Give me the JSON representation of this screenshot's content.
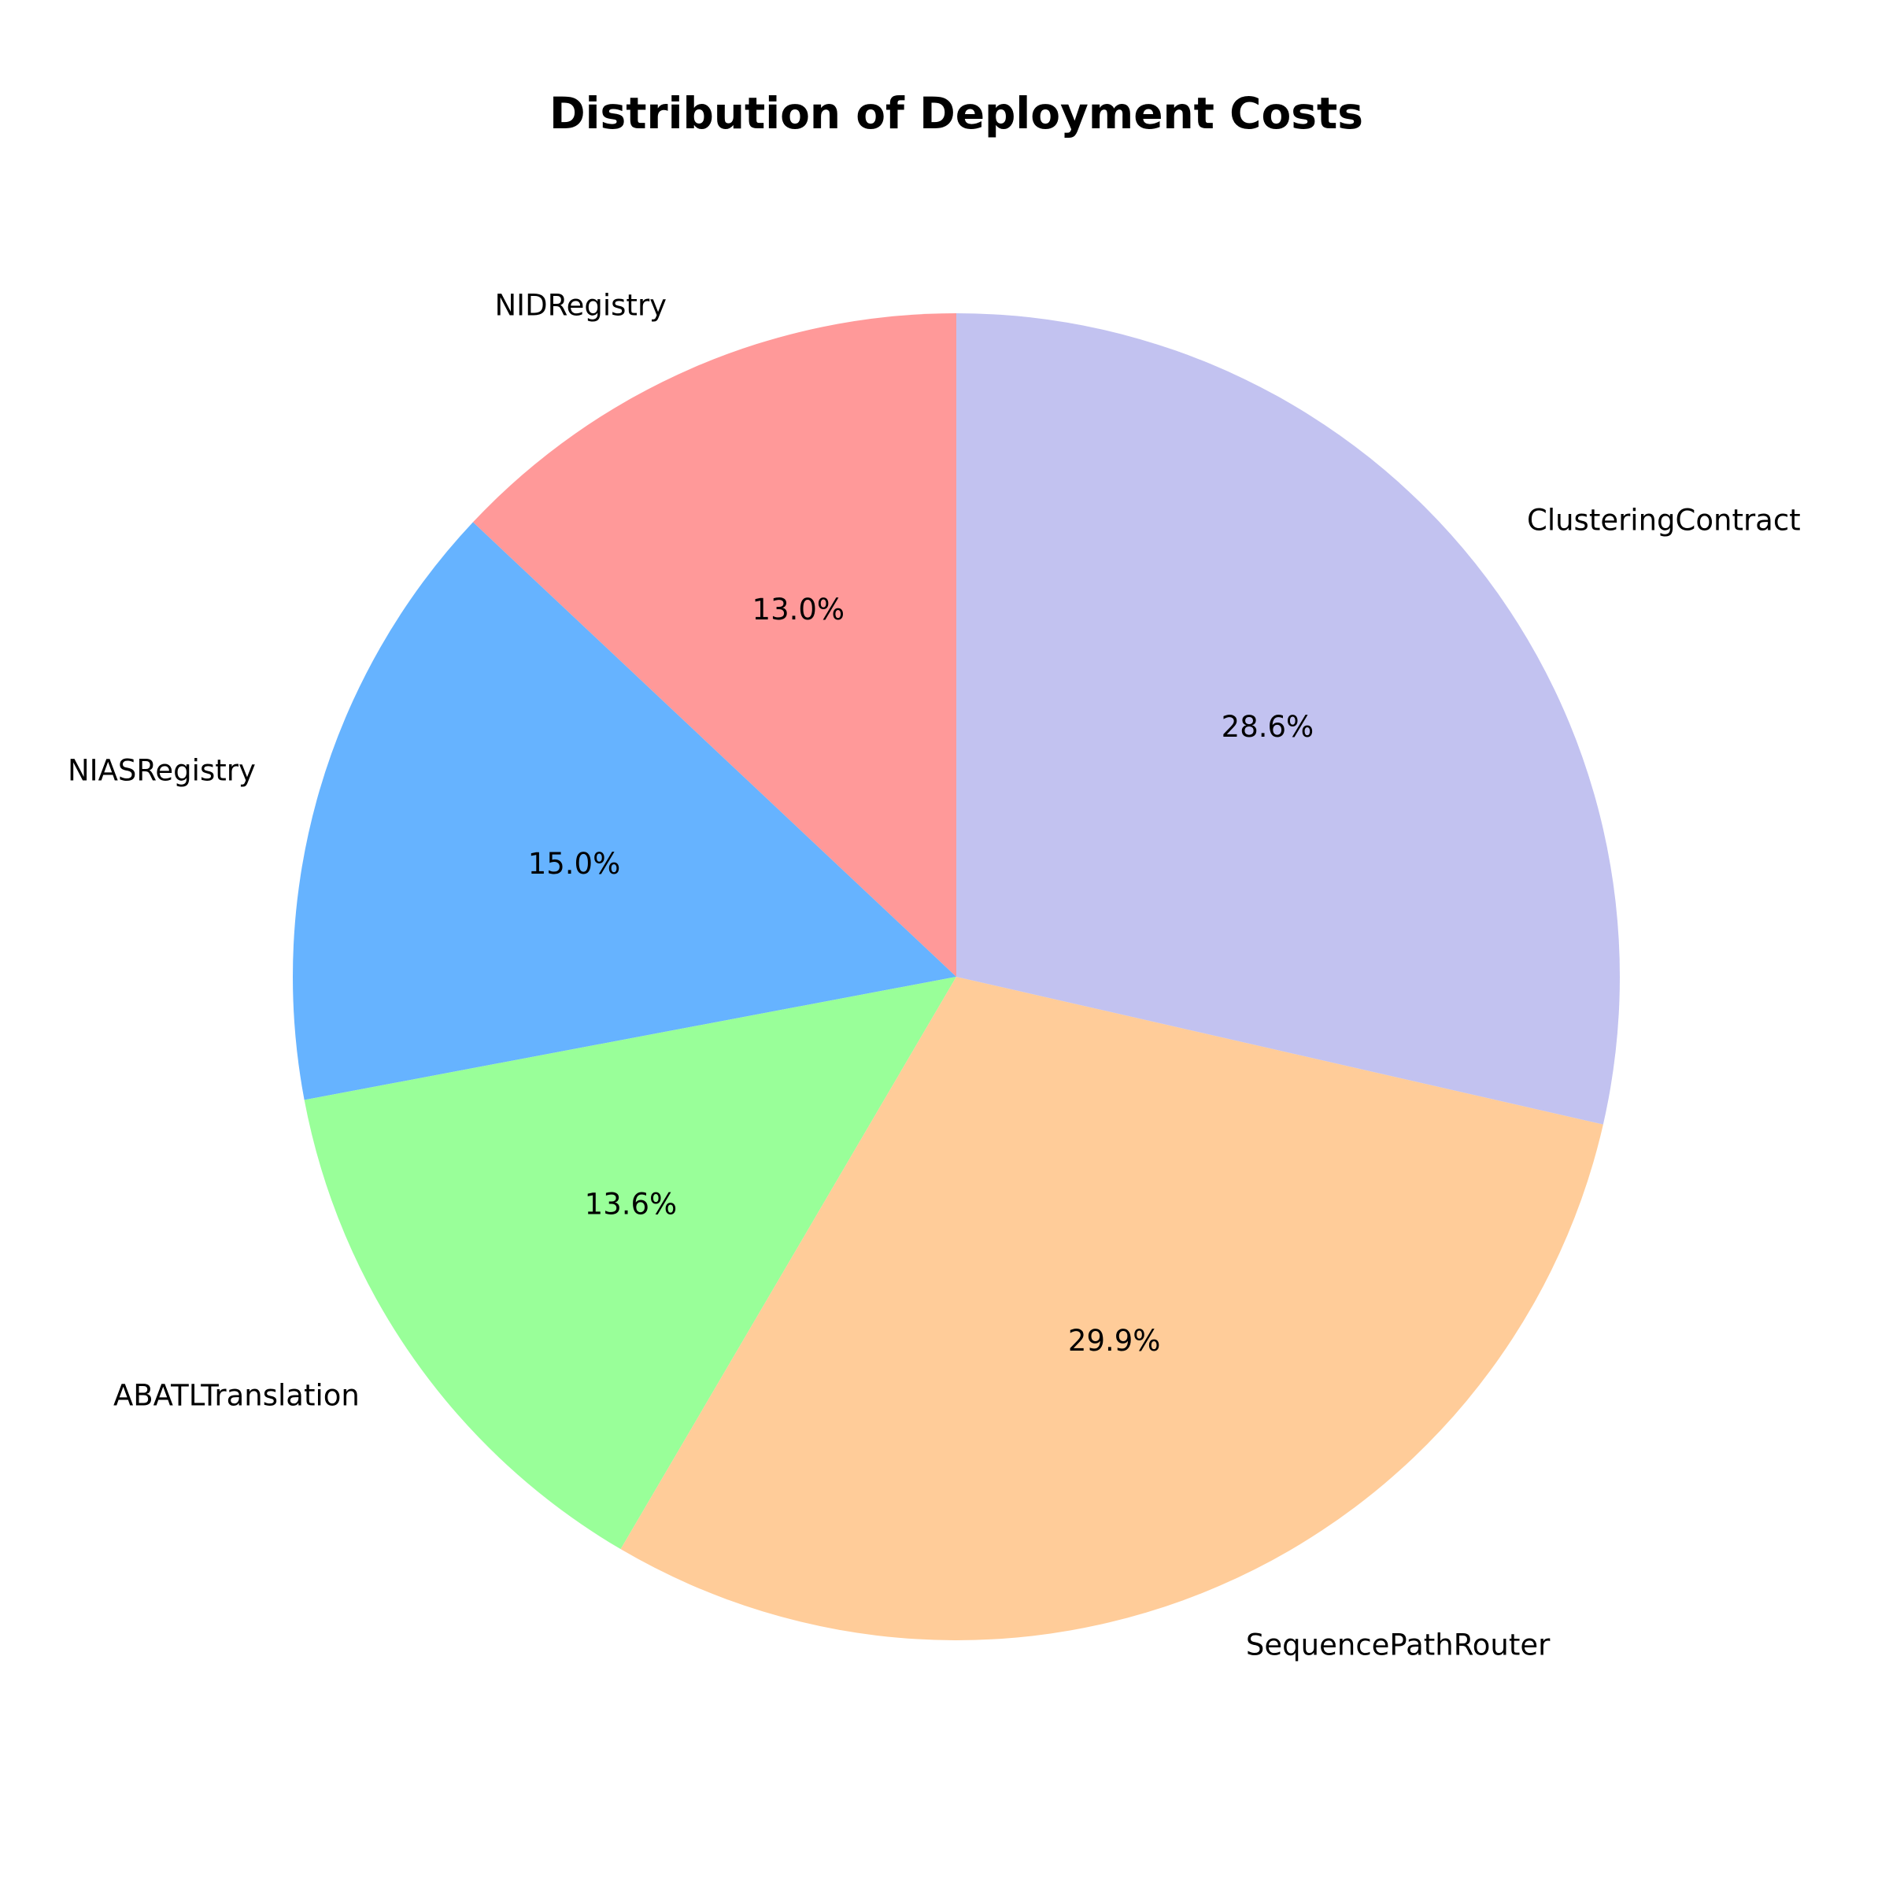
{
  "chart_data": {
    "type": "pie",
    "title": "Distribution of Deployment Costs",
    "start_angle_deg": 90,
    "direction": "counterclockwise",
    "slices": [
      {
        "label": "NIDRegistry",
        "value": 13.0,
        "pct_label": "13.0%",
        "color": "#ff9999"
      },
      {
        "label": "NIASRegistry",
        "value": 15.0,
        "pct_label": "15.0%",
        "color": "#66b3ff"
      },
      {
        "label": "ABATLTranslation",
        "value": 13.6,
        "pct_label": "13.6%",
        "color": "#99ff99"
      },
      {
        "label": "SequencePathRouter",
        "value": 29.9,
        "pct_label": "29.9%",
        "color": "#ffcc99"
      },
      {
        "label": "ClusteringContract",
        "value": 28.6,
        "pct_label": "28.6%",
        "color": "#c2c2f0"
      }
    ]
  }
}
